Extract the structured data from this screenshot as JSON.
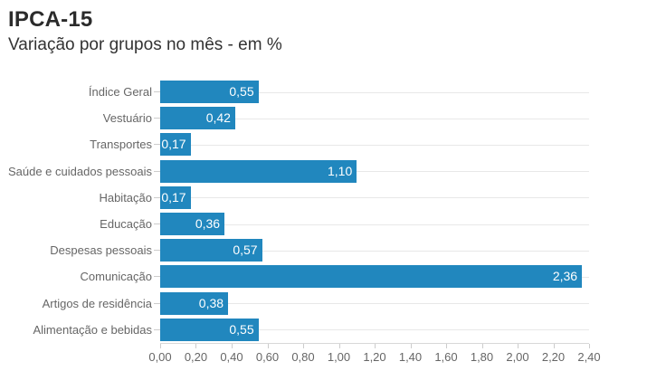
{
  "header": {
    "title": "IPCA-15",
    "subtitle": "Variação por grupos no mês - em %"
  },
  "colors": {
    "bar": "#2187be",
    "gridline": "#e8e8e8",
    "axis_line": "#d8d8d8",
    "tick": "#cccccc",
    "category_label": "#666666",
    "axis_label": "#666666",
    "value_label": "#ffffff",
    "title": "#2b2b2b",
    "subtitle": "#333333"
  },
  "chart_data": {
    "type": "bar",
    "orientation": "horizontal",
    "title": "IPCA-15",
    "subtitle": "Variação por grupos no mês - em %",
    "xlabel": "",
    "ylabel": "",
    "xlim": [
      0,
      2.4
    ],
    "grid": "horizontal lines at category centers",
    "legend": "none",
    "categories": [
      "Índice Geral",
      "Vestuário",
      "Transportes",
      "Saúde e cuidados pessoais",
      "Habitação",
      "Educação",
      "Despesas pessoais",
      "Comunicação",
      "Artigos de residência",
      "Alimentação e bebidas"
    ],
    "values": [
      0.55,
      0.42,
      0.17,
      1.1,
      0.17,
      0.36,
      0.57,
      2.36,
      0.38,
      0.55
    ],
    "value_labels": [
      "0,55",
      "0,42",
      "0,17",
      "1,10",
      "0,17",
      "0,36",
      "0,57",
      "2,36",
      "0,38",
      "0,55"
    ],
    "x_ticks": [
      "0,00",
      "0,20",
      "0,40",
      "0,60",
      "0,80",
      "1,00",
      "1,20",
      "1,40",
      "1,60",
      "1,80",
      "2,00",
      "2,20",
      "2,40"
    ]
  }
}
